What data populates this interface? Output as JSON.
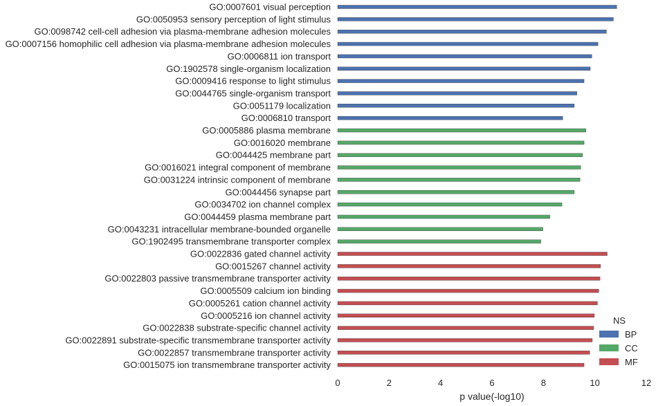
{
  "chart_data": {
    "type": "bar",
    "orientation": "horizontal",
    "xlabel": "p value(-log10)",
    "ylabel": "",
    "xlim": [
      0,
      12
    ],
    "xticks": [
      "0",
      "2",
      "4",
      "6",
      "8",
      "10",
      "12"
    ],
    "grid": false,
    "legend": {
      "title": "NS",
      "placement": "bottom-right",
      "entries": [
        "BP",
        "CC",
        "MF"
      ]
    },
    "colors": {
      "BP": "#4c72b0",
      "CC": "#55a868",
      "MF": "#c44e52"
    },
    "categories": [
      "GO:0007601 visual perception",
      "GO:0050953 sensory perception of light stimulus",
      "GO:0098742 cell-cell adhesion via plasma-membrane adhesion molecules",
      "GO:0007156 homophilic cell adhesion via plasma-membrane adhesion molecules",
      "GO:0006811 ion transport",
      "GO:1902578 single-organism localization",
      "GO:0009416 response to light stimulus",
      "GO:0044765 single-organism transport",
      "GO:0051179 localization",
      "GO:0006810 transport",
      "GO:0005886 plasma membrane",
      "GO:0016020 membrane",
      "GO:0044425 membrane part",
      "GO:0016021 integral component of membrane",
      "GO:0031224 intrinsic component of membrane",
      "GO:0044456 synapse part",
      "GO:0034702 ion channel complex",
      "GO:0044459 plasma membrane part",
      "GO:0043231 intracellular membrane-bounded organelle",
      "GO:1902495 transmembrane transporter complex",
      "GO:0022836 gated channel activity",
      "GO:0015267 channel activity",
      "GO:0022803 passive transmembrane transporter activity",
      "GO:0005509 calcium ion binding",
      "GO:0005261 cation channel activity",
      "GO:0005216 ion channel activity",
      "GO:0022838 substrate-specific channel activity",
      "GO:0022891 substrate-specific transmembrane transporter activity",
      "GO:0022857 transmembrane transporter activity",
      "GO:0015075 ion transmembrane transporter activity"
    ],
    "groups": [
      "BP",
      "BP",
      "BP",
      "BP",
      "BP",
      "BP",
      "BP",
      "BP",
      "BP",
      "BP",
      "CC",
      "CC",
      "CC",
      "CC",
      "CC",
      "CC",
      "CC",
      "CC",
      "CC",
      "CC",
      "MF",
      "MF",
      "MF",
      "MF",
      "MF",
      "MF",
      "MF",
      "MF",
      "MF",
      "MF"
    ],
    "values": [
      10.85,
      10.72,
      10.45,
      10.12,
      9.88,
      9.82,
      9.58,
      9.3,
      9.2,
      8.75,
      9.65,
      9.58,
      9.52,
      9.45,
      9.42,
      9.2,
      8.72,
      8.25,
      7.98,
      7.9,
      10.48,
      10.22,
      10.2,
      10.15,
      10.1,
      9.98,
      9.95,
      9.9,
      9.8,
      9.58
    ]
  }
}
